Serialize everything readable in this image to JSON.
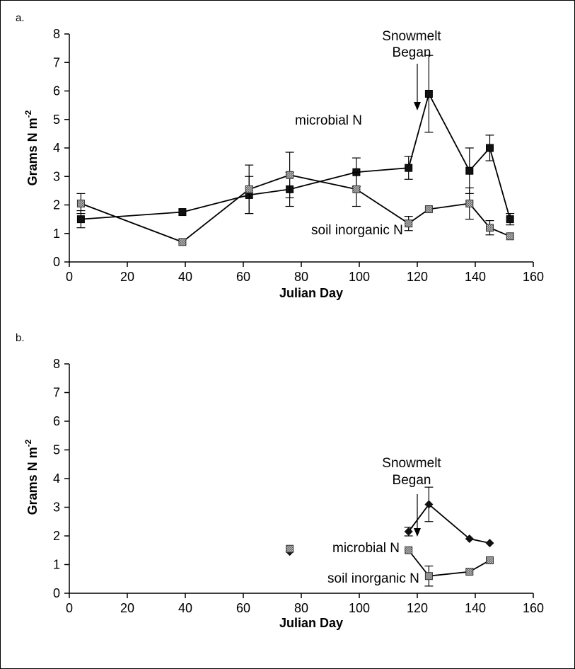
{
  "chart_data": [
    {
      "type": "line",
      "panel_label": "a.",
      "xlabel": "Julian Day",
      "ylabel_main": "Grams N m",
      "ylabel_sup": "-2",
      "xlim": [
        0,
        160
      ],
      "ylim": [
        0,
        8
      ],
      "x_ticks": [
        "0",
        "20",
        "40",
        "60",
        "80",
        "100",
        "120",
        "140",
        "160"
      ],
      "y_ticks": [
        "0",
        "1",
        "2",
        "3",
        "4",
        "5",
        "6",
        "7",
        "8"
      ],
      "annotations": {
        "snowmelt_line1": "Snowmelt",
        "snowmelt_line2": "Began",
        "snowmelt_day": 120,
        "microbial_label": "microbial N",
        "soil_label": "soil inorganic N"
      },
      "series": [
        {
          "key": "microbial",
          "marker": "square-filled",
          "points": [
            {
              "x": 4,
              "y": 1.5,
              "err": 0.3
            },
            {
              "x": 39,
              "y": 1.75,
              "err": 0
            },
            {
              "x": 62,
              "y": 2.35,
              "err": 0.65
            },
            {
              "x": 76,
              "y": 2.55,
              "err": 0.6
            },
            {
              "x": 99,
              "y": 3.15,
              "err": 0.5
            },
            {
              "x": 117,
              "y": 3.3,
              "err": 0.4
            },
            {
              "x": 124,
              "y": 5.9,
              "err": 1.35
            },
            {
              "x": 138,
              "y": 3.2,
              "err": 0.8
            },
            {
              "x": 145,
              "y": 4.0,
              "err": 0.45
            },
            {
              "x": 152,
              "y": 1.5,
              "err": 0.2
            }
          ]
        },
        {
          "key": "soil",
          "marker": "square-hatched",
          "points": [
            {
              "x": 4,
              "y": 2.05,
              "err": 0.35
            },
            {
              "x": 39,
              "y": 0.7,
              "err": 0
            },
            {
              "x": 62,
              "y": 2.55,
              "err": 0.85
            },
            {
              "x": 76,
              "y": 3.05,
              "err": 0.8
            },
            {
              "x": 99,
              "y": 2.55,
              "err": 0.6
            },
            {
              "x": 117,
              "y": 1.35,
              "err": 0.25
            },
            {
              "x": 124,
              "y": 1.85,
              "err": 0
            },
            {
              "x": 138,
              "y": 2.05,
              "err": 0.55
            },
            {
              "x": 145,
              "y": 1.2,
              "err": 0.25
            },
            {
              "x": 152,
              "y": 0.9,
              "err": 0
            }
          ]
        }
      ]
    },
    {
      "type": "line",
      "panel_label": "b.",
      "xlabel": "Julian Day",
      "ylabel_main": "Grams N m",
      "ylabel_sup": "-2",
      "xlim": [
        0,
        160
      ],
      "ylim": [
        0,
        8
      ],
      "x_ticks": [
        "0",
        "20",
        "40",
        "60",
        "80",
        "100",
        "120",
        "140",
        "160"
      ],
      "y_ticks": [
        "0",
        "1",
        "2",
        "3",
        "4",
        "5",
        "6",
        "7",
        "8"
      ],
      "annotations": {
        "snowmelt_line1": "Snowmelt",
        "snowmelt_line2": "Began",
        "snowmelt_day": 120,
        "microbial_label": "microbial N",
        "soil_label": "soil inorganic N"
      },
      "series": [
        {
          "key": "microbial",
          "marker": "diamond-filled",
          "points": [
            {
              "x": 76,
              "y": 1.45,
              "err": 0,
              "connect": false
            },
            {
              "x": 117,
              "y": 2.15,
              "err": 0.15
            },
            {
              "x": 124,
              "y": 3.1,
              "err": 0.6
            },
            {
              "x": 138,
              "y": 1.9,
              "err": 0
            },
            {
              "x": 145,
              "y": 1.75,
              "err": 0
            }
          ]
        },
        {
          "key": "soil",
          "marker": "square-hatched",
          "points": [
            {
              "x": 76,
              "y": 1.55,
              "err": 0,
              "connect": false
            },
            {
              "x": 117,
              "y": 1.5,
              "err": 0
            },
            {
              "x": 124,
              "y": 0.6,
              "err": 0.35
            },
            {
              "x": 138,
              "y": 0.75,
              "err": 0
            },
            {
              "x": 145,
              "y": 1.15,
              "err": 0
            }
          ]
        }
      ]
    }
  ]
}
